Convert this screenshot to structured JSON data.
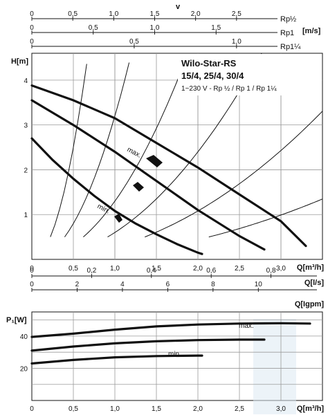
{
  "velocity_scales": {
    "title": "v",
    "unit": "[m/s]",
    "rows": [
      {
        "pipe": "Rp½",
        "max": 3.0,
        "ticks": [
          0,
          0.5,
          1.0,
          1.5,
          2.0,
          2.5
        ],
        "labels": [
          "0",
          "0,5",
          "1,0",
          "1,5",
          "2,0",
          "2,5"
        ]
      },
      {
        "pipe": "Rp1",
        "max": 2.0,
        "ticks": [
          0,
          0.5,
          1.0,
          1.5
        ],
        "labels": [
          "0",
          "0,5",
          "1,0",
          "1,5"
        ]
      },
      {
        "pipe": "Rp1¼",
        "max": 1.2,
        "ticks": [
          0,
          0.5,
          1.0
        ],
        "labels": [
          "0",
          "0,5",
          "1,0"
        ]
      }
    ]
  },
  "product": {
    "name": "Wilo-Star-RS",
    "variants": "15/4, 25/4, 30/4",
    "supply": "1~230 V - Rp ½ / Rp 1 / Rp 1¼"
  },
  "chart_data": [
    {
      "type": "line",
      "title": "",
      "xlabel": "Q[m³/h]",
      "ylabel": "H[m]",
      "xlim": [
        0,
        3.5
      ],
      "ylim": [
        0,
        4.6
      ],
      "x_ticks": [
        0,
        0.5,
        1.0,
        1.5,
        2.0,
        2.5,
        3.0
      ],
      "x_tick_labels": [
        "0",
        "0,5",
        "1,0",
        "1,5",
        "2,0",
        "2,5",
        "3,0"
      ],
      "y_ticks": [
        1,
        2,
        3,
        4
      ],
      "y_tick_labels": [
        "1",
        "2",
        "3",
        "4"
      ],
      "grid": true,
      "series": [
        {
          "name": "max.",
          "x": [
            0,
            0.5,
            1.0,
            1.5,
            2.0,
            2.5,
            3.0,
            3.3
          ],
          "y": [
            3.88,
            3.55,
            3.15,
            2.6,
            2.05,
            1.45,
            0.85,
            0.3
          ]
        },
        {
          "x": [
            0,
            0.5,
            1.0,
            1.5,
            2.0,
            2.5,
            2.8
          ],
          "y": [
            3.55,
            3.0,
            2.4,
            1.75,
            1.1,
            0.52,
            0.22
          ]
        },
        {
          "name": "min.",
          "x": [
            0,
            0.25,
            0.5,
            0.75,
            1.0,
            1.25,
            1.5,
            1.75,
            2.0,
            2.05
          ],
          "y": [
            2.7,
            2.22,
            1.8,
            1.42,
            1.08,
            0.8,
            0.56,
            0.34,
            0.15,
            0.12
          ]
        }
      ],
      "system_curves_k": [
        10,
        3.2,
        1.3,
        0.6,
        0.27,
        0.11
      ]
    },
    {
      "type": "line",
      "title": "",
      "xlabel": "Q[m³/h]",
      "ylabel": "P₁[W]",
      "xlim": [
        0,
        3.5
      ],
      "ylim": [
        0,
        55
      ],
      "x_ticks": [
        0,
        0.5,
        1.0,
        1.5,
        2.0,
        2.5,
        3.0
      ],
      "x_tick_labels": [
        "0",
        "0,5",
        "1,0",
        "1,5",
        "2,0",
        "2,5",
        "3,0"
      ],
      "y_ticks": [
        20,
        40
      ],
      "y_tick_labels": [
        "20",
        "40"
      ],
      "grid": true,
      "series": [
        {
          "name": "max.",
          "x": [
            0,
            0.5,
            1.0,
            1.5,
            2.0,
            2.5,
            3.0,
            3.35
          ],
          "y": [
            39.5,
            41.5,
            44,
            46,
            47.2,
            47.8,
            48,
            47.8
          ]
        },
        {
          "x": [
            0,
            0.5,
            1.0,
            1.5,
            2.0,
            2.5,
            2.8
          ],
          "y": [
            31,
            33.5,
            35.5,
            36.8,
            37.5,
            37.8,
            37.8
          ]
        },
        {
          "name": "min.",
          "x": [
            0,
            0.5,
            1.0,
            1.5,
            2.0,
            2.05
          ],
          "y": [
            23,
            25.2,
            26.8,
            27.6,
            27.9,
            27.9
          ]
        }
      ]
    }
  ],
  "flow_scales": [
    {
      "unit": "Q[l/s]",
      "max_m3h": 3.5,
      "factor_per_m3h": 0.27778,
      "ticks": [
        0,
        0.2,
        0.4,
        0.6,
        0.8
      ],
      "labels": [
        "0",
        "0,2",
        "0,4",
        "0,6",
        "0,8"
      ]
    },
    {
      "unit": "Q[Igpm]",
      "max_m3h": 3.5,
      "factor_per_m3h": 3.6662,
      "ticks": [
        0,
        2,
        4,
        6,
        8,
        10
      ],
      "labels": [
        "0",
        "2",
        "4",
        "6",
        "8",
        "10"
      ]
    }
  ]
}
